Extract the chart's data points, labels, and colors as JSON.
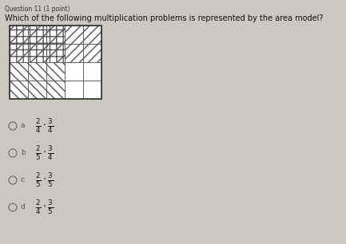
{
  "title_line1": "Question 11 (1 point)",
  "title_line2": "Which of the following multiplication problems is represented by the area model?",
  "grid_cols": 5,
  "grid_rows": 4,
  "shaded_cols": 3,
  "shaded_rows": 2,
  "options_labels": [
    "a",
    "b",
    "c",
    "d"
  ],
  "options_num": [
    "2",
    "2",
    "2",
    "2"
  ],
  "options_den1": [
    "4",
    "5",
    "5",
    "4"
  ],
  "options_num2": [
    "3",
    "3",
    "3",
    "3"
  ],
  "options_den2": [
    "4",
    "4",
    "5",
    "5"
  ],
  "bg_color": "#ccc8c0",
  "grid_line_color": "#555555",
  "text_color": "#222222"
}
